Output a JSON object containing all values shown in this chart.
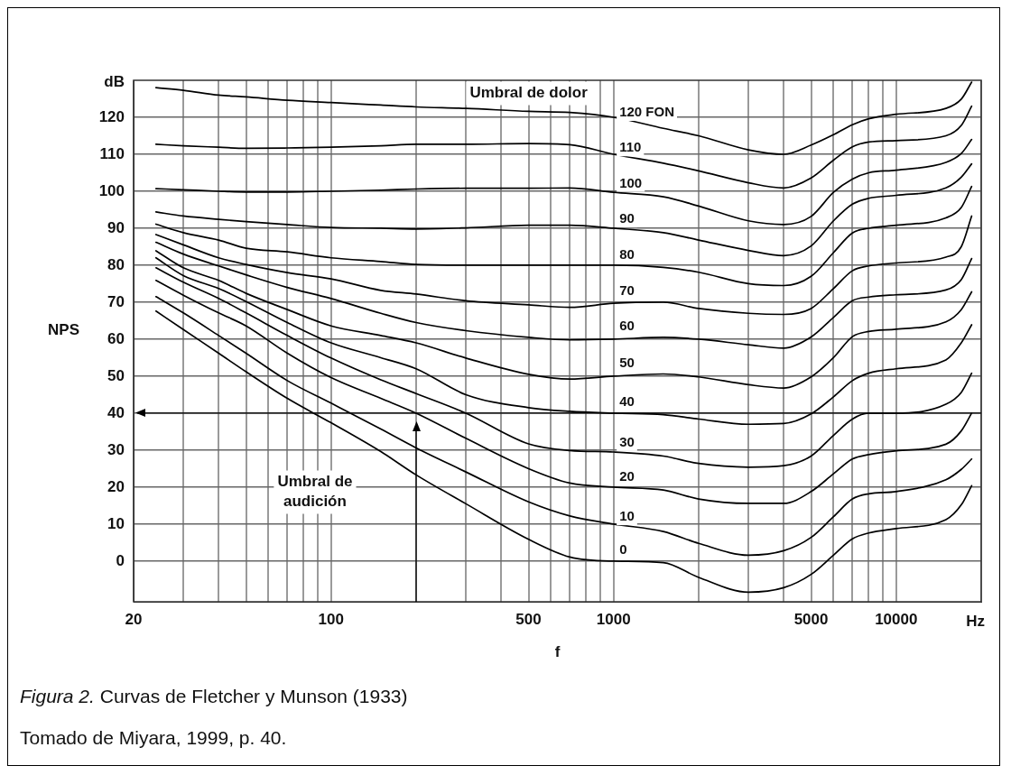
{
  "chart_data": {
    "type": "line",
    "xlabel": "f",
    "ylabel": "NPS",
    "log": "x",
    "grid": true,
    "legend": false,
    "marker": "none",
    "line_style": "solid",
    "xlim": [
      20,
      20000
    ],
    "ylim": [
      -11,
      130
    ],
    "xticks": [
      20,
      {
        "value": 30,
        "label": null
      },
      {
        "value": 40,
        "label": null
      },
      {
        "value": 50,
        "label": null
      },
      {
        "value": 60,
        "label": null
      },
      {
        "value": 70,
        "label": null
      },
      {
        "value": 80,
        "label": null
      },
      {
        "value": 90,
        "label": null
      },
      100,
      {
        "value": 200,
        "label": null
      },
      {
        "value": 300,
        "label": null
      },
      {
        "value": 400,
        "label": null
      },
      500,
      {
        "value": 600,
        "label": null
      },
      {
        "value": 700,
        "label": null
      },
      {
        "value": 800,
        "label": null
      },
      {
        "value": 900,
        "label": null
      },
      1000,
      {
        "value": 2000,
        "label": null
      },
      {
        "value": 3000,
        "label": null
      },
      {
        "value": 4000,
        "label": null
      },
      5000,
      {
        "value": 6000,
        "label": null
      },
      {
        "value": 7000,
        "label": null
      },
      {
        "value": 8000,
        "label": null
      },
      {
        "value": 9000,
        "label": null
      },
      10000,
      {
        "value": 20000,
        "label": null
      }
    ],
    "yticks": [
      0,
      10,
      20,
      30,
      40,
      50,
      60,
      70,
      80,
      90,
      100,
      110,
      120
    ],
    "x": [
      24,
      30,
      40,
      50,
      70,
      100,
      150,
      200,
      300,
      500,
      700,
      1000,
      1500,
      2000,
      3000,
      4000,
      5000,
      6000,
      7000,
      8000,
      10000,
      15000,
      17000,
      18500
    ],
    "series": [
      {
        "name": "120 FON",
        "color": "#000000",
        "values": [
          128,
          127.3,
          126,
          125.5,
          124.6,
          124,
          123.3,
          122.8,
          122.4,
          121.6,
          121.3,
          120,
          117,
          115,
          111.2,
          110,
          112.5,
          115.3,
          118,
          119.6,
          120.8,
          122.4,
          124.9,
          129.5
        ]
      },
      {
        "name": "110",
        "color": "#000000",
        "values": [
          112.7,
          112.3,
          111.9,
          111.6,
          111.7,
          111.9,
          112.3,
          112.7,
          112.7,
          112.9,
          112.6,
          110,
          107.6,
          105.5,
          102.3,
          100.9,
          103.6,
          108.4,
          112,
          113.3,
          113.7,
          115,
          117.8,
          123
        ]
      },
      {
        "name": "100",
        "color": "#000000",
        "values": [
          100.7,
          100.4,
          100,
          99.8,
          99.8,
          100,
          100.3,
          100.6,
          100.8,
          100.8,
          100.9,
          99.7,
          98.5,
          96,
          92,
          91,
          93.2,
          99.7,
          103.3,
          105,
          105.7,
          107.8,
          110.2,
          114
        ]
      },
      {
        "name": "90",
        "color": "#000000",
        "values": [
          94.4,
          93.3,
          92.4,
          91.8,
          91,
          90.2,
          90,
          89.8,
          90.1,
          90.8,
          90.8,
          90,
          88.8,
          86.8,
          84,
          82.6,
          85.2,
          92,
          96.5,
          98.1,
          98.9,
          100.9,
          103.8,
          107.4
        ]
      },
      {
        "name": "80",
        "color": "#000000",
        "values": [
          91.1,
          88.8,
          86.8,
          84.6,
          83.6,
          82,
          81,
          80.2,
          80,
          80,
          80,
          80,
          79.4,
          78.1,
          75,
          74.5,
          77,
          83.4,
          88.7,
          90,
          90.8,
          92.8,
          95.6,
          101.3
        ]
      },
      {
        "name": "70",
        "color": "#000000",
        "values": [
          88.3,
          85.5,
          82,
          80.2,
          78,
          76.3,
          73.2,
          72.2,
          70.4,
          69.3,
          68.6,
          69.7,
          70,
          68.3,
          67,
          66.7,
          68.3,
          73.7,
          78.5,
          79.8,
          80.6,
          82.2,
          85,
          93.3
        ]
      },
      {
        "name": "60",
        "color": "#000000",
        "values": [
          86.2,
          83,
          79.8,
          77.4,
          74,
          71,
          67,
          64.5,
          62.3,
          60.5,
          59.8,
          60,
          60.5,
          60,
          58.5,
          57.6,
          60.6,
          65.9,
          70.4,
          71.4,
          72,
          73.3,
          76.1,
          81.8
        ]
      },
      {
        "name": "50",
        "color": "#000000",
        "values": [
          83.9,
          79.3,
          75.9,
          72.4,
          68,
          63.6,
          61,
          59,
          54.9,
          50.5,
          49.2,
          50,
          50.6,
          49.8,
          47.7,
          46.8,
          49.8,
          55,
          60.7,
          62.1,
          62.7,
          64.7,
          68,
          72.8
        ]
      },
      {
        "name": "40",
        "color": "#000000",
        "values": [
          82,
          77.2,
          73.7,
          70.2,
          64.5,
          59,
          55,
          52,
          45,
          41.5,
          40.5,
          40,
          39.6,
          38.4,
          37,
          37.2,
          39.8,
          44.4,
          48.8,
          50.8,
          52,
          54.4,
          59,
          63.9
        ]
      },
      {
        "name": "30",
        "color": "#000000",
        "values": [
          79.3,
          75.4,
          71,
          67.1,
          61,
          54.9,
          49,
          45.3,
          40,
          31.7,
          29.9,
          29.5,
          28.4,
          26.4,
          25.4,
          25.8,
          28.4,
          34,
          38.4,
          40,
          40,
          42.4,
          45.6,
          50.8
        ]
      },
      {
        "name": "20",
        "color": "#000000",
        "values": [
          75.9,
          71.9,
          67.1,
          63.6,
          56.2,
          49.6,
          44,
          40,
          33.2,
          25,
          21.1,
          20,
          19.2,
          16.8,
          15.6,
          15.6,
          18.8,
          23.6,
          27.6,
          28.8,
          29.8,
          31.6,
          35.2,
          40
        ]
      },
      {
        "name": "10",
        "color": "#000000",
        "values": [
          71.5,
          67.1,
          61,
          56.2,
          48.8,
          42.7,
          35.7,
          30.6,
          24.1,
          16,
          12.2,
          10,
          8,
          4.8,
          1.6,
          2.8,
          6.4,
          12,
          16.8,
          18.2,
          18.8,
          22,
          24.8,
          27.6
        ]
      },
      {
        "name": "0",
        "color": "#000000",
        "values": [
          67.6,
          62.6,
          56.2,
          51.2,
          44,
          37.4,
          29.6,
          23.3,
          15.5,
          5.9,
          1.1,
          0,
          -0.4,
          -4.4,
          -8.4,
          -7.2,
          -3.6,
          1.6,
          6,
          7.6,
          8.8,
          11.2,
          15.2,
          20.4
        ]
      }
    ],
    "ref_lines": [
      {
        "axis": "y",
        "value": 40,
        "color": "#000000"
      },
      {
        "axis": "x",
        "value": 200,
        "color": "#000000"
      }
    ],
    "annotations": [
      "dB",
      "Hz",
      "Umbral de dolor",
      "Umbral de audición",
      "Figura 2.",
      "Curvas de Fletcher y Munson (1933)",
      "Tomado de Miyara, 1999, p. 40."
    ]
  }
}
